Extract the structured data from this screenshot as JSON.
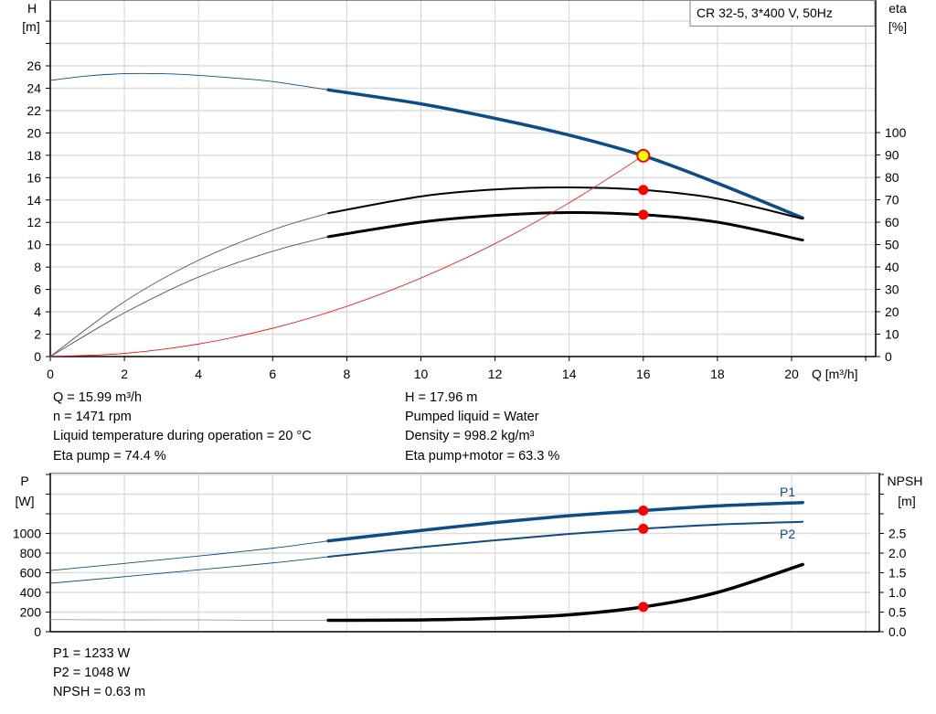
{
  "colors": {
    "head": "#0e4c85",
    "power": "#0e4c85",
    "eta": "#000000",
    "system": "#ff0000",
    "dot": "#ff0000",
    "dot_op": "#ffff00",
    "grid": "#d3d3d3"
  },
  "legend_box": "CR 32-5, 3*400 V, 50Hz",
  "chart_data": [
    {
      "type": "line",
      "xlabel": "Q [m³/h]",
      "ylabel_left": {
        "name": "H",
        "unit": "[m]"
      },
      "ylabel_right": {
        "name": "eta",
        "unit": "[%]"
      },
      "xlim": [
        0,
        22
      ],
      "ylim_left": [
        0,
        32
      ],
      "ylim_right": [
        0,
        100
      ],
      "x_ticks": [
        "0",
        "2",
        "4",
        "6",
        "8",
        "10",
        "12",
        "14",
        "16",
        "18",
        "20"
      ],
      "y_ticks_left": [
        "0",
        "2",
        "4",
        "6",
        "8",
        "10",
        "12",
        "14",
        "16",
        "18",
        "20",
        "22",
        "24",
        "26"
      ],
      "y_ticks_right": [
        "0",
        "10",
        "20",
        "30",
        "40",
        "50",
        "60",
        "70",
        "80",
        "90",
        "100"
      ],
      "grid": true,
      "series": [
        {
          "key": "head",
          "axis": "left",
          "x": [
            0,
            1,
            2,
            3,
            4,
            5,
            6,
            7.5,
            10,
            12,
            14,
            16,
            18,
            20.3
          ],
          "y": [
            24.7,
            25.1,
            25.3,
            25.3,
            25.15,
            24.9,
            24.6,
            23.85,
            22.6,
            21.3,
            19.8,
            17.96,
            15.5,
            12.4
          ],
          "thick_from": 7.5
        },
        {
          "key": "eta_pump",
          "axis": "right",
          "x": [
            0,
            2,
            4,
            6,
            7.5,
            10,
            12,
            14,
            16,
            18,
            20.3
          ],
          "y": [
            0,
            24.5,
            43,
            56.5,
            64,
            71.5,
            74.6,
            75.5,
            74.4,
            70.5,
            61.5
          ],
          "thick_from": 7.5
        },
        {
          "key": "eta_total",
          "axis": "right",
          "x": [
            0,
            2,
            4,
            6,
            7.5,
            10,
            12,
            14,
            16,
            18,
            20.3
          ],
          "y": [
            0,
            19.5,
            35.5,
            47,
            53.5,
            60,
            63,
            64.3,
            63.3,
            60,
            52
          ],
          "thick_from": 7.5
        },
        {
          "key": "system",
          "axis": "left",
          "x": [
            0,
            2,
            4,
            6,
            8,
            10,
            12,
            14,
            16
          ],
          "y": [
            0,
            0.28,
            1.12,
            2.53,
            4.49,
            7.02,
            10.1,
            13.75,
            17.96
          ]
        }
      ],
      "points": [
        {
          "axis": "left",
          "x": 16,
          "y": 17.96,
          "operating": true
        },
        {
          "axis": "right",
          "x": 16,
          "y": 74.4
        },
        {
          "axis": "right",
          "x": 16,
          "y": 63.3
        }
      ]
    },
    {
      "type": "line",
      "ylabel_left": {
        "name": "P",
        "unit": "[W]"
      },
      "ylabel_right": {
        "name": "NPSH",
        "unit": "[m]"
      },
      "xlim": [
        0,
        22
      ],
      "ylim_left": [
        0,
        1600
      ],
      "ylim_right": [
        0,
        4
      ],
      "y_ticks_left": [
        "0",
        "200",
        "400",
        "600",
        "800",
        "1000"
      ],
      "y_ticks_right": [
        "0.0",
        "0.5",
        "1.0",
        "1.5",
        "2.0",
        "2.5"
      ],
      "grid": true,
      "series": [
        {
          "key": "p1",
          "name": "P1",
          "axis": "left",
          "x": [
            0,
            2,
            4,
            6,
            7.5,
            10,
            12,
            14,
            16,
            18,
            20.3
          ],
          "y": [
            623,
            695,
            770,
            850,
            924,
            1030,
            1110,
            1180,
            1233,
            1280,
            1314
          ],
          "thick_from": 7.5
        },
        {
          "key": "p2",
          "name": "P2",
          "axis": "left",
          "x": [
            0,
            2,
            4,
            6,
            7.5,
            10,
            12,
            14,
            16,
            18,
            20.3
          ],
          "y": [
            493,
            560,
            630,
            700,
            763,
            860,
            930,
            995,
            1048,
            1090,
            1119
          ],
          "thick_from": 7.5
        },
        {
          "key": "npsh",
          "axis": "right",
          "x": [
            0,
            2,
            4,
            6,
            7.5,
            10,
            12,
            14,
            16,
            18,
            20.3
          ],
          "y": [
            0.31,
            0.3,
            0.3,
            0.29,
            0.29,
            0.3,
            0.34,
            0.43,
            0.63,
            1.0,
            1.71
          ],
          "thick_from": 7.5
        }
      ],
      "points": [
        {
          "axis": "left",
          "x": 16,
          "y": 1233
        },
        {
          "axis": "left",
          "x": 16,
          "y": 1048
        },
        {
          "axis": "right",
          "x": 16,
          "y": 0.63
        }
      ]
    }
  ],
  "info_top": {
    "left": [
      "Q = 15.99 m³/h",
      "n = 1471 rpm",
      "Liquid temperature during operation = 20 °C",
      "Eta pump = 74.4 %"
    ],
    "right": [
      "H = 17.96 m",
      "Pumped liquid = Water",
      "Density = 998.2 kg/m³",
      "Eta pump+motor = 63.3 %"
    ]
  },
  "info_bottom": [
    "P1 = 1233 W",
    "P2 = 1048 W",
    "NPSH = 0.63 m"
  ]
}
